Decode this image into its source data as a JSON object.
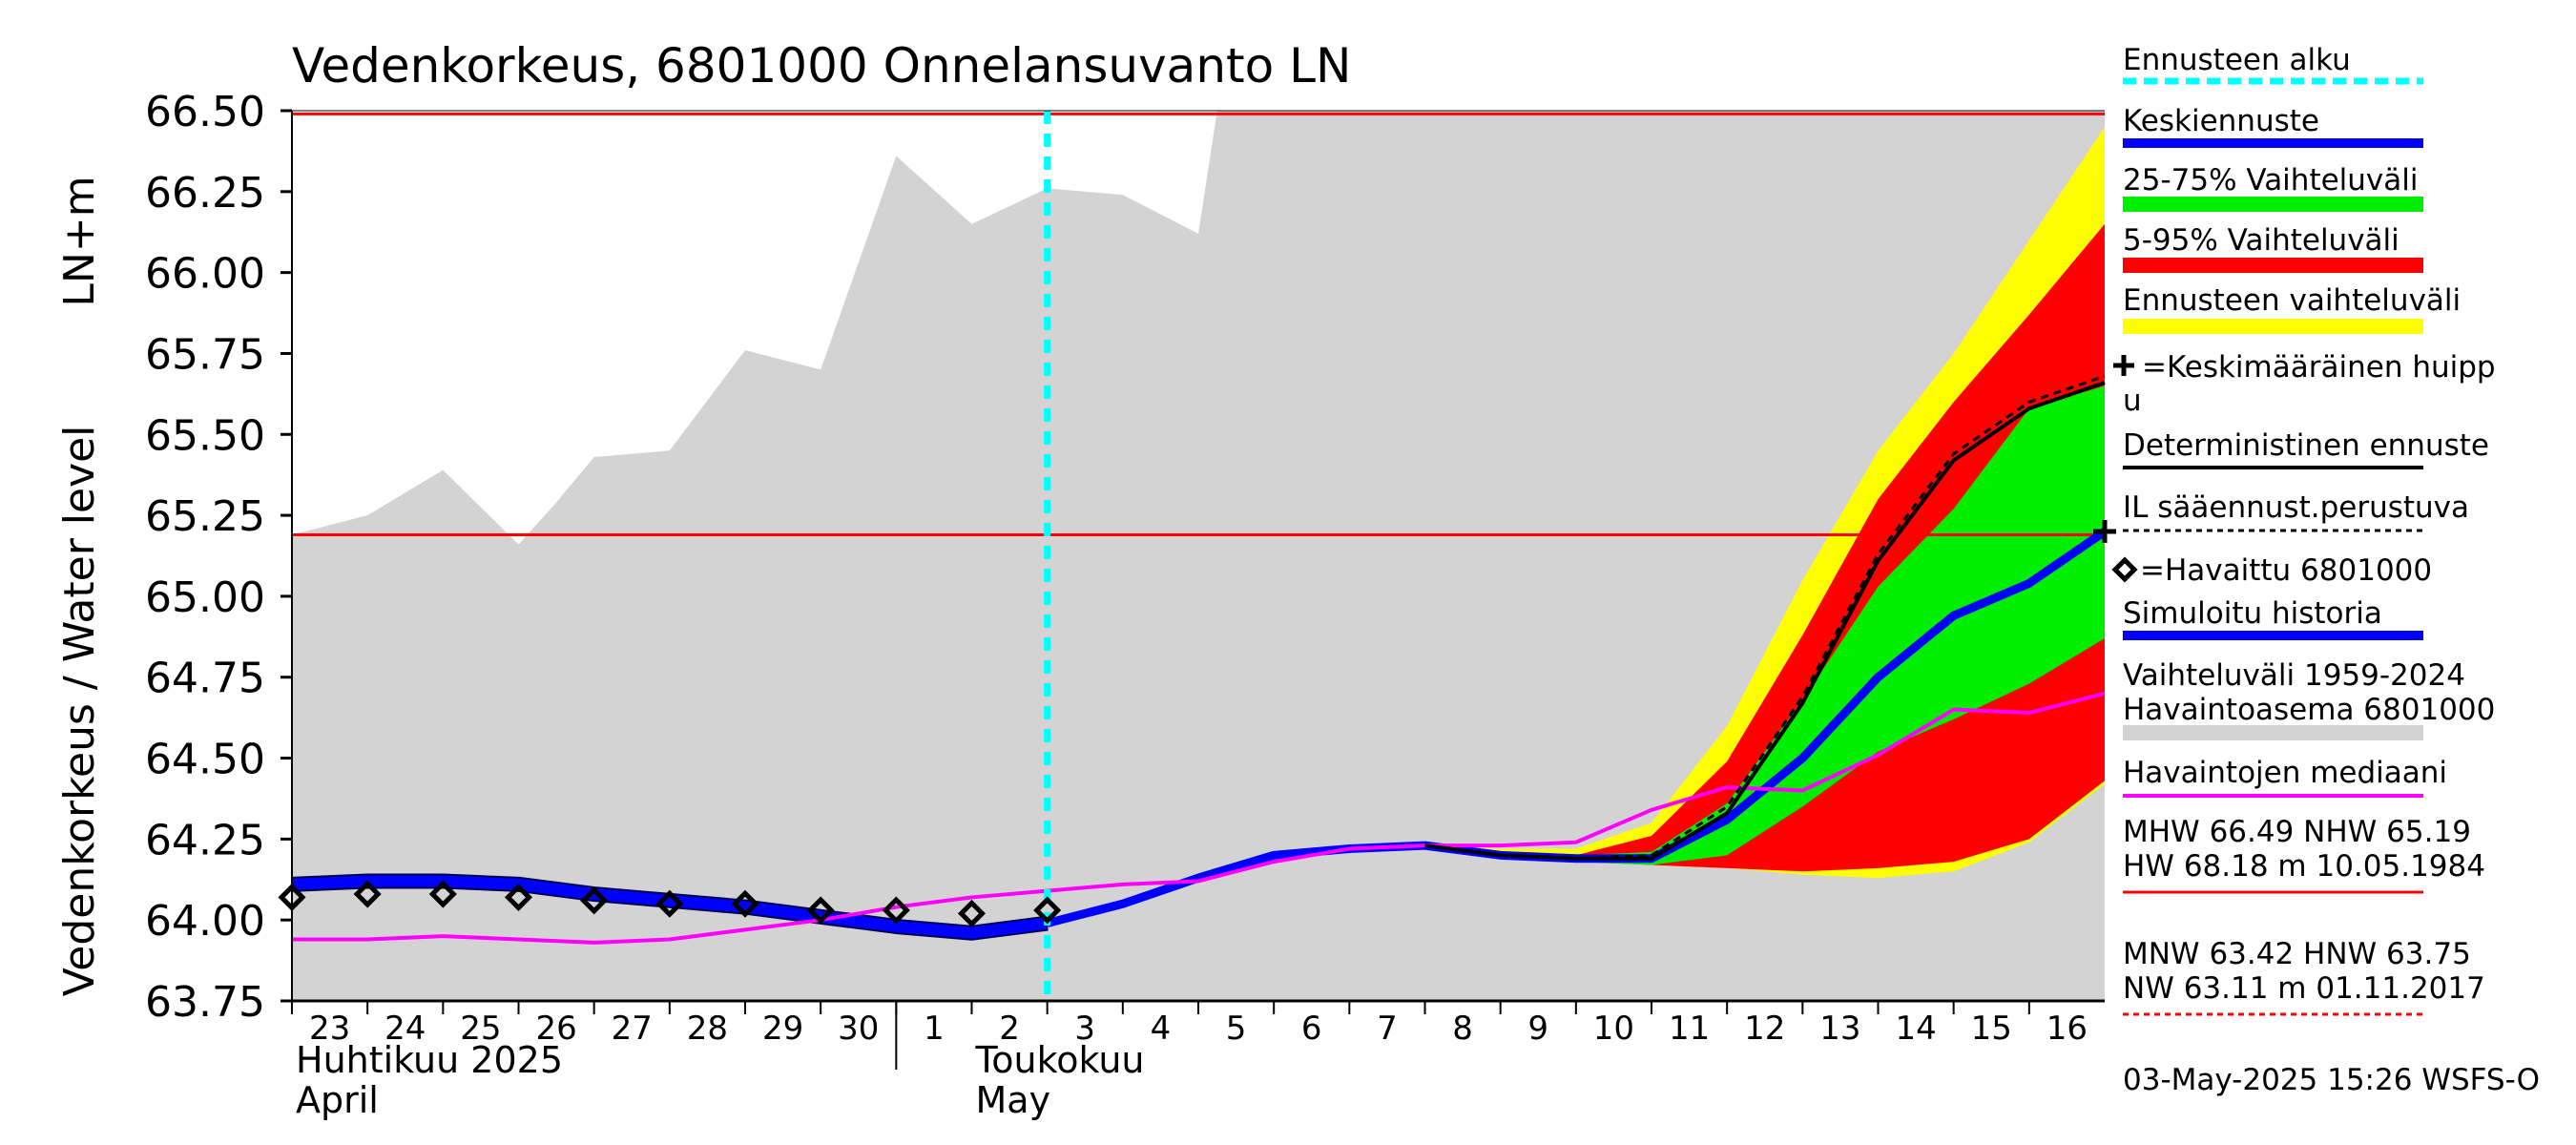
{
  "chart_data": {
    "type": "area",
    "title": "Vedenkorkeus, 6801000 Onnelansuvanto LN",
    "ylabel": "Vedenkorkeus / Water level",
    "yunit": "LN+m",
    "ylim": [
      63.75,
      66.5
    ],
    "yticks": [
      "63.75",
      "64.00",
      "64.25",
      "64.50",
      "64.75",
      "65.00",
      "65.25",
      "65.50",
      "65.75",
      "66.00",
      "66.25",
      "66.50"
    ],
    "x_start": "2025-04-23",
    "x_end": "2025-05-17",
    "x_tick_labels": [
      "23",
      "24",
      "25",
      "26",
      "27",
      "28",
      "29",
      "30",
      "1",
      "2",
      "3",
      "4",
      "5",
      "6",
      "7",
      "8",
      "9",
      "10",
      "11",
      "12",
      "13",
      "14",
      "15",
      "16"
    ],
    "month_labels": [
      {
        "fi": "Huhtikuu  2025",
        "en": "April",
        "at": "2025-04-23"
      },
      {
        "fi": "Toukokuu",
        "en": "May",
        "at": "2025-05-02"
      }
    ],
    "forecast_start": "2025-05-03",
    "reference_lines": [
      {
        "name": "MHW",
        "value": 66.49,
        "style": "solid",
        "color": "#ff0000"
      },
      {
        "name": "NHW",
        "value": 65.19,
        "style": "solid",
        "color": "#ff0000"
      }
    ],
    "historical_range": {
      "name": "Vaihteluväli 1959-2024 Havaintoasema 6801000",
      "color": "#d3d3d3",
      "x": [
        "2025-04-23",
        "2025-04-24",
        "2025-04-25",
        "2025-04-26",
        "2025-04-26 12:00",
        "2025-04-27",
        "2025-04-28",
        "2025-04-29",
        "2025-04-30",
        "2025-05-01",
        "2025-05-02",
        "2025-05-03",
        "2025-05-04",
        "2025-05-05",
        "2025-05-05 06:00",
        "2025-05-17"
      ],
      "upper": [
        65.19,
        65.25,
        65.39,
        65.16,
        65.29,
        65.43,
        65.45,
        65.76,
        65.7,
        66.36,
        66.15,
        66.26,
        66.24,
        66.12,
        66.5,
        66.5
      ],
      "lower": [
        63.75,
        63.75,
        63.75,
        63.75,
        63.75,
        63.75,
        63.75,
        63.75,
        63.75,
        63.75,
        63.75,
        63.75,
        63.75,
        63.75,
        63.75,
        63.75
      ]
    },
    "forecast_x": [
      "2025-05-08",
      "2025-05-09",
      "2025-05-10",
      "2025-05-11",
      "2025-05-12",
      "2025-05-13",
      "2025-05-14",
      "2025-05-15",
      "2025-05-16",
      "2025-05-17"
    ],
    "forecast_range": {
      "name": "Ennusteen vaihteluväli",
      "color": "#ffff00",
      "upper": [
        64.23,
        64.22,
        64.22,
        64.3,
        64.6,
        65.05,
        65.45,
        65.75,
        66.1,
        66.45
      ],
      "lower": [
        64.23,
        64.2,
        64.18,
        64.17,
        64.16,
        64.14,
        64.13,
        64.15,
        64.24,
        64.42
      ]
    },
    "band_5_95": {
      "name": "5-95% Vaihteluväli",
      "color": "#ff0000",
      "upper": [
        64.23,
        64.21,
        64.2,
        64.26,
        64.49,
        64.88,
        65.3,
        65.6,
        65.87,
        66.15
      ],
      "lower": [
        64.23,
        64.2,
        64.18,
        64.17,
        64.16,
        64.15,
        64.16,
        64.18,
        64.25,
        64.43
      ]
    },
    "band_25_75": {
      "name": "25-75% Vaihteluväli",
      "color": "#00ee00",
      "upper": [
        64.23,
        64.21,
        64.2,
        64.21,
        64.36,
        64.68,
        65.03,
        65.27,
        65.58,
        65.65
      ],
      "lower": [
        64.23,
        64.2,
        64.18,
        64.17,
        64.2,
        64.35,
        64.52,
        64.62,
        64.73,
        64.87
      ]
    },
    "series": [
      {
        "name": "Simuloitu historia",
        "color": "#0000ff",
        "width": 12,
        "x": [
          "2025-04-23",
          "2025-04-24",
          "2025-04-25",
          "2025-04-26",
          "2025-04-27",
          "2025-04-28",
          "2025-04-29",
          "2025-04-30",
          "2025-05-01",
          "2025-05-02",
          "2025-05-03"
        ],
        "values": [
          64.11,
          64.12,
          64.12,
          64.11,
          64.08,
          64.06,
          64.04,
          64.01,
          63.98,
          63.96,
          63.99
        ]
      },
      {
        "name": "Keskiennuste",
        "color": "#0000ff",
        "width": 9,
        "x": [
          "2025-05-03",
          "2025-05-04",
          "2025-05-05",
          "2025-05-06",
          "2025-05-07",
          "2025-05-08",
          "2025-05-09",
          "2025-05-10",
          "2025-05-11",
          "2025-05-12",
          "2025-05-13",
          "2025-05-14",
          "2025-05-15",
          "2025-05-16",
          "2025-05-17"
        ],
        "values": [
          63.99,
          64.05,
          64.13,
          64.2,
          64.22,
          64.23,
          64.2,
          64.19,
          64.19,
          64.31,
          64.5,
          64.75,
          64.94,
          65.04,
          65.2
        ]
      },
      {
        "name": "Havaintojen mediaani",
        "color": "#ff00ff",
        "width": 4,
        "x": [
          "2025-04-23",
          "2025-04-24",
          "2025-04-25",
          "2025-04-26",
          "2025-04-27",
          "2025-04-28",
          "2025-04-29",
          "2025-04-30",
          "2025-05-01",
          "2025-05-02",
          "2025-05-03",
          "2025-05-04",
          "2025-05-05",
          "2025-05-06",
          "2025-05-07",
          "2025-05-08",
          "2025-05-09",
          "2025-05-10",
          "2025-05-11",
          "2025-05-12",
          "2025-05-13",
          "2025-05-14",
          "2025-05-15",
          "2025-05-16",
          "2025-05-17"
        ],
        "values": [
          63.94,
          63.94,
          63.95,
          63.94,
          63.93,
          63.94,
          63.97,
          64.0,
          64.04,
          64.07,
          64.09,
          64.11,
          64.12,
          64.18,
          64.22,
          64.23,
          64.23,
          64.24,
          64.34,
          64.41,
          64.4,
          64.51,
          64.65,
          64.64,
          64.7
        ]
      },
      {
        "name": "Deterministinen ennuste",
        "color": "#000000",
        "width": 4,
        "x": [
          "2025-05-08",
          "2025-05-09",
          "2025-05-10",
          "2025-05-11",
          "2025-05-12",
          "2025-05-13",
          "2025-05-14",
          "2025-05-15",
          "2025-05-16",
          "2025-05-17"
        ],
        "values": [
          64.23,
          64.2,
          64.19,
          64.19,
          64.33,
          64.67,
          65.11,
          65.42,
          65.58,
          65.66
        ]
      },
      {
        "name": "IL sääennust.perustuva",
        "color": "#000000",
        "width": 3,
        "dash": true,
        "x": [
          "2025-05-08",
          "2025-05-09",
          "2025-05-10",
          "2025-05-11",
          "2025-05-12",
          "2025-05-13",
          "2025-05-14",
          "2025-05-15",
          "2025-05-16",
          "2025-05-17"
        ],
        "values": [
          64.23,
          64.2,
          64.19,
          64.2,
          64.35,
          64.69,
          65.13,
          65.44,
          65.6,
          65.68
        ]
      }
    ],
    "observed": {
      "name": "=Havaittu 6801000",
      "x": [
        "2025-04-23",
        "2025-04-24",
        "2025-04-25",
        "2025-04-26",
        "2025-04-27",
        "2025-04-28",
        "2025-04-29",
        "2025-04-30",
        "2025-05-01",
        "2025-05-02",
        "2025-05-03"
      ],
      "values": [
        64.07,
        64.08,
        64.08,
        64.07,
        64.06,
        64.05,
        64.05,
        64.03,
        64.03,
        64.02,
        64.03
      ]
    },
    "average_peak": {
      "name": "=Keskimääräinen huippu",
      "x": "2025-05-17",
      "value": 65.2
    },
    "legend": {
      "placement": "right",
      "items": [
        {
          "label": "Ennusteen alku",
          "kind": "dash",
          "color": "#00ffff"
        },
        {
          "label": "Keskiennuste",
          "kind": "thick",
          "color": "#0000ff"
        },
        {
          "label": "25-75% Vaihteluväli",
          "kind": "band",
          "color": "#00ee00"
        },
        {
          "label": "5-95% Vaihteluväli",
          "kind": "band",
          "color": "#ff0000"
        },
        {
          "label": "Ennusteen vaihteluväli",
          "kind": "band",
          "color": "#ffff00"
        },
        {
          "label": "=Keskimääräinen huipp",
          "label2": "u",
          "kind": "peak",
          "color": "#000000"
        },
        {
          "label": "Deterministinen ennuste",
          "kind": "thin",
          "color": "#000000"
        },
        {
          "label": "IL sääennust.perustuva",
          "kind": "dotted",
          "color": "#000000"
        },
        {
          "label": "=Havaittu 6801000",
          "kind": "obs",
          "color": "#000000"
        },
        {
          "label": "Simuloitu historia",
          "kind": "thick",
          "color": "#0000ff"
        },
        {
          "label": "Vaihteluväli 1959-2024",
          "label2": " Havaintoasema 6801000",
          "kind": "band",
          "color": "#d3d3d3"
        },
        {
          "label": "Havaintojen mediaani",
          "kind": "thin",
          "color": "#ff00ff"
        }
      ]
    },
    "stats": {
      "line1": "MHW  66.49 NHW  65.19",
      "line2": "HW  68.18 m 10.05.1984",
      "line3": "MNW  63.42 HNW  63.75",
      "line4": "NW  63.11 m 01.11.2017"
    },
    "footer": "03-May-2025 15:26 WSFS-O"
  }
}
